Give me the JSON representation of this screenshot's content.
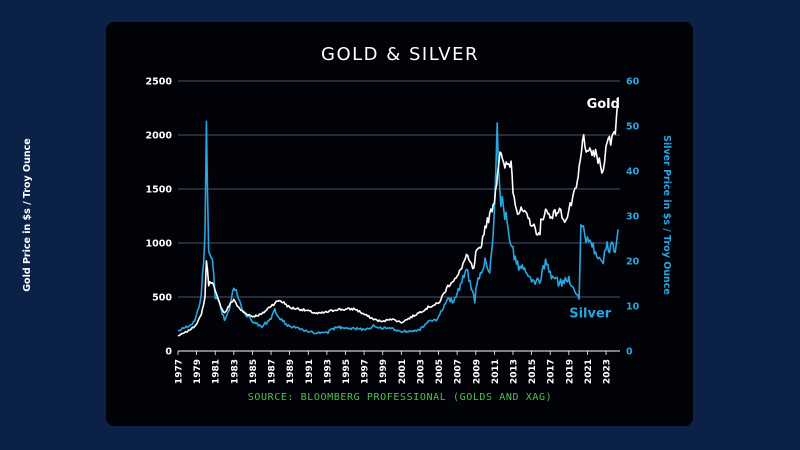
{
  "chart_data": {
    "type": "line",
    "title": "GOLD & SILVER",
    "ylabel_left": "Gold Price in $s / Troy Ounce",
    "ylabel_right": "Silver Price in $s / Troy Ounce",
    "source": "SOURCE: BLOOMBERG PROFESSIONAL (GOLDS AND XAG)",
    "xlim": [
      1977,
      2024.5
    ],
    "ylim_left": [
      0,
      2500
    ],
    "ylim_right": [
      0,
      60
    ],
    "yticks_left": [
      "0",
      "500",
      "1000",
      "1500",
      "2000",
      "2500"
    ],
    "yticks_right": [
      "0",
      "10",
      "20",
      "30",
      "40",
      "50",
      "60"
    ],
    "xticks": [
      "1977",
      "1979",
      "1981",
      "1983",
      "1985",
      "1987",
      "1989",
      "1991",
      "1993",
      "1995",
      "1997",
      "1999",
      "2001",
      "2003",
      "2005",
      "2007",
      "2009",
      "2011",
      "2013",
      "2015",
      "2017",
      "2019",
      "2021",
      "2023"
    ],
    "grid": "horizontal",
    "colors": {
      "gold": "#ffffff",
      "silver": "#29a6e0",
      "grid": "#6a6f86",
      "axis_left": "#ffffff",
      "axis_right": "#29a6e0",
      "source": "#4fc24c",
      "background": "#020308",
      "page": "#0b2147"
    },
    "series": [
      {
        "name": "Gold",
        "axis": "left",
        "color": "#ffffff",
        "x": [
          1977,
          1978,
          1978.8,
          1979.5,
          1979.9,
          1980.05,
          1980.3,
          1980.7,
          1981,
          1981.5,
          1982,
          1982.5,
          1983,
          1983.5,
          1984,
          1985,
          1985.5,
          1986,
          1986.5,
          1987,
          1987.9,
          1988.5,
          1989,
          1990,
          1991,
          1992,
          1993,
          1994,
          1995,
          1996,
          1997,
          1998,
          1999,
          1999.8,
          2000.5,
          2001,
          2002,
          2003,
          2004,
          2005,
          2006,
          2006.5,
          2007,
          2008,
          2008.8,
          2009,
          2009.5,
          2010,
          2010.5,
          2011,
          2011.6,
          2012,
          2012.8,
          2013,
          2013.5,
          2014,
          2015,
          2015.9,
          2016,
          2016.5,
          2017,
          2018,
          2018.7,
          2019,
          2019.8,
          2020,
          2020.6,
          2021,
          2021.5,
          2022,
          2022.7,
          2023,
          2023.5,
          2024,
          2024.3
        ],
        "y": [
          140,
          180,
          230,
          330,
          500,
          850,
          620,
          650,
          550,
          430,
          350,
          420,
          480,
          400,
          360,
          320,
          330,
          340,
          380,
          420,
          470,
          440,
          400,
          390,
          370,
          345,
          360,
          385,
          385,
          390,
          340,
          295,
          270,
          300,
          280,
          265,
          310,
          360,
          410,
          440,
          600,
          650,
          680,
          880,
          750,
          900,
          950,
          1150,
          1250,
          1400,
          1850,
          1700,
          1750,
          1500,
          1280,
          1300,
          1180,
          1060,
          1200,
          1300,
          1250,
          1300,
          1200,
          1300,
          1500,
          1600,
          2000,
          1800,
          1850,
          1800,
          1650,
          1950,
          1950,
          2050,
          2350
        ]
      },
      {
        "name": "Silver",
        "axis": "right",
        "color": "#29a6e0",
        "x": [
          1977,
          1978,
          1978.8,
          1979.5,
          1979.9,
          1980.05,
          1980.3,
          1980.7,
          1981,
          1981.5,
          1982,
          1982.5,
          1983,
          1983.5,
          1984,
          1985,
          1986,
          1987,
          1987.4,
          1988,
          1989,
          1990,
          1991,
          1992,
          1993,
          1994,
          1995,
          1996,
          1997,
          1998,
          1999,
          2000,
          2001,
          2002,
          2003,
          2004,
          2005,
          2006,
          2006.5,
          2007,
          2008,
          2008.9,
          2009,
          2010,
          2010.5,
          2011,
          2011.3,
          2011.7,
          2012,
          2013,
          2013.5,
          2014,
          2015,
          2016,
          2016.5,
          2017,
          2018,
          2019,
          2020.1,
          2020.3,
          2020.7,
          2021,
          2021.5,
          2022,
          2022.7,
          2023,
          2023.5,
          2024,
          2024.3
        ],
        "y": [
          4.5,
          5.4,
          6.5,
          12,
          25,
          49,
          22,
          20,
          12,
          10,
          7,
          9,
          14,
          12,
          9,
          6.5,
          5.5,
          7,
          9,
          7,
          5.5,
          5,
          4.2,
          4,
          4,
          5.3,
          5.2,
          5,
          4.7,
          5.5,
          5.1,
          5,
          4.3,
          4.5,
          4.8,
          6.5,
          7.2,
          12,
          11,
          13,
          18,
          11,
          14,
          20,
          18,
          30,
          49,
          33,
          32,
          22,
          19,
          19,
          15,
          16,
          20,
          17,
          15,
          16,
          12,
          28,
          26,
          25,
          24,
          21,
          19,
          23,
          23,
          23,
          27
        ]
      }
    ],
    "annotations": [
      {
        "text": "Gold",
        "x": 2022.7,
        "y": 2250,
        "axis": "left",
        "color": "#ffffff"
      },
      {
        "text": "Silver",
        "x": 2021.3,
        "y": 7.5,
        "axis": "right",
        "color": "#29a6e0"
      }
    ]
  }
}
